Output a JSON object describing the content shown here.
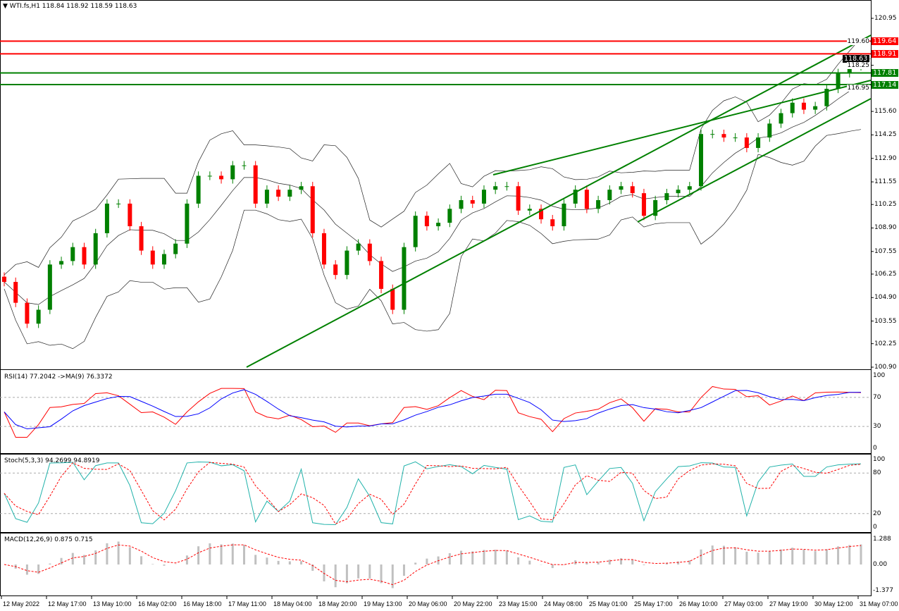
{
  "header": {
    "symbol": "WTI.fs,H1",
    "ohlc": "118.84 118.92 118.59 118.63"
  },
  "colors": {
    "bull": "#008000",
    "bear": "#ff0000",
    "trend": "#008000",
    "res": "#ff0000",
    "sup": "#008000",
    "rsi": "#ff0000",
    "rsi_ma": "#0000ff",
    "stoch_main": "#20b2aa",
    "stoch_signal": "#ff0000",
    "macd_hist": "#c0c0c0",
    "macd_signal": "#ff0000"
  },
  "indicators": {
    "rsi": {
      "label": "RSI(14) 77.2042  ->MA(9) 76.3372",
      "levels": [
        "100",
        "70",
        "30",
        "0"
      ]
    },
    "stoch": {
      "label": "Stoch(5,3,3) 94.2699 94.8919",
      "levels": [
        "100",
        "80",
        "20",
        "0"
      ]
    },
    "macd": {
      "label": "MACD(12,26,9) 0.875 0.715",
      "levels": [
        "1.288",
        "0.00",
        "-1.377"
      ]
    }
  },
  "chart_data": {
    "type": "candlestick",
    "title": "WTI.fs,H1",
    "ylim": [
      100.9,
      120.95
    ],
    "y_ticks": [
      "120.95",
      "119.60",
      "118.25",
      "116.95",
      "115.60",
      "114.25",
      "112.90",
      "111.55",
      "110.25",
      "108.90",
      "107.55",
      "106.25",
      "104.90",
      "103.55",
      "102.25",
      "100.90"
    ],
    "x_ticks": [
      "12 May 2022",
      "12 May 17:00",
      "13 May 10:00",
      "16 May 02:00",
      "16 May 18:00",
      "17 May 11:00",
      "18 May 04:00",
      "18 May 20:00",
      "19 May 13:00",
      "20 May 06:00",
      "20 May 22:00",
      "23 May 15:00",
      "24 May 08:00",
      "25 May 01:00",
      "25 May 17:00",
      "26 May 10:00",
      "27 May 03:00",
      "27 May 19:00",
      "30 May 12:00",
      "31 May 07:00"
    ],
    "closes": [
      105.8,
      104.6,
      103.4,
      104.2,
      106.8,
      107.0,
      107.8,
      106.8,
      108.6,
      110.3,
      110.3,
      109.0,
      107.6,
      106.8,
      107.4,
      108.0,
      110.3,
      111.9,
      111.9,
      111.7,
      112.5,
      112.5,
      110.3,
      111.1,
      110.7,
      111.1,
      111.3,
      108.6,
      106.8,
      106.2,
      107.6,
      108.0,
      107.0,
      105.4,
      104.2,
      107.8,
      109.6,
      109.0,
      109.2,
      110.0,
      110.5,
      110.3,
      111.1,
      111.3,
      111.3,
      109.9,
      110.0,
      109.4,
      109.0,
      110.3,
      111.1,
      110.0,
      110.5,
      111.1,
      111.3,
      110.9,
      109.6,
      110.5,
      110.9,
      111.1,
      111.3,
      114.3,
      114.3,
      114.1,
      114.1,
      113.5,
      114.1,
      114.9,
      115.5,
      116.1,
      115.7,
      115.9,
      116.9,
      117.8,
      118.2,
      118.63
    ],
    "price_tags": [
      {
        "value": "119.64",
        "kind": "resistance"
      },
      {
        "value": "118.91",
        "kind": "resistance"
      },
      {
        "value": "118.63",
        "kind": "last"
      },
      {
        "value": "117.81",
        "kind": "support"
      },
      {
        "value": "117.14",
        "kind": "support"
      }
    ]
  }
}
